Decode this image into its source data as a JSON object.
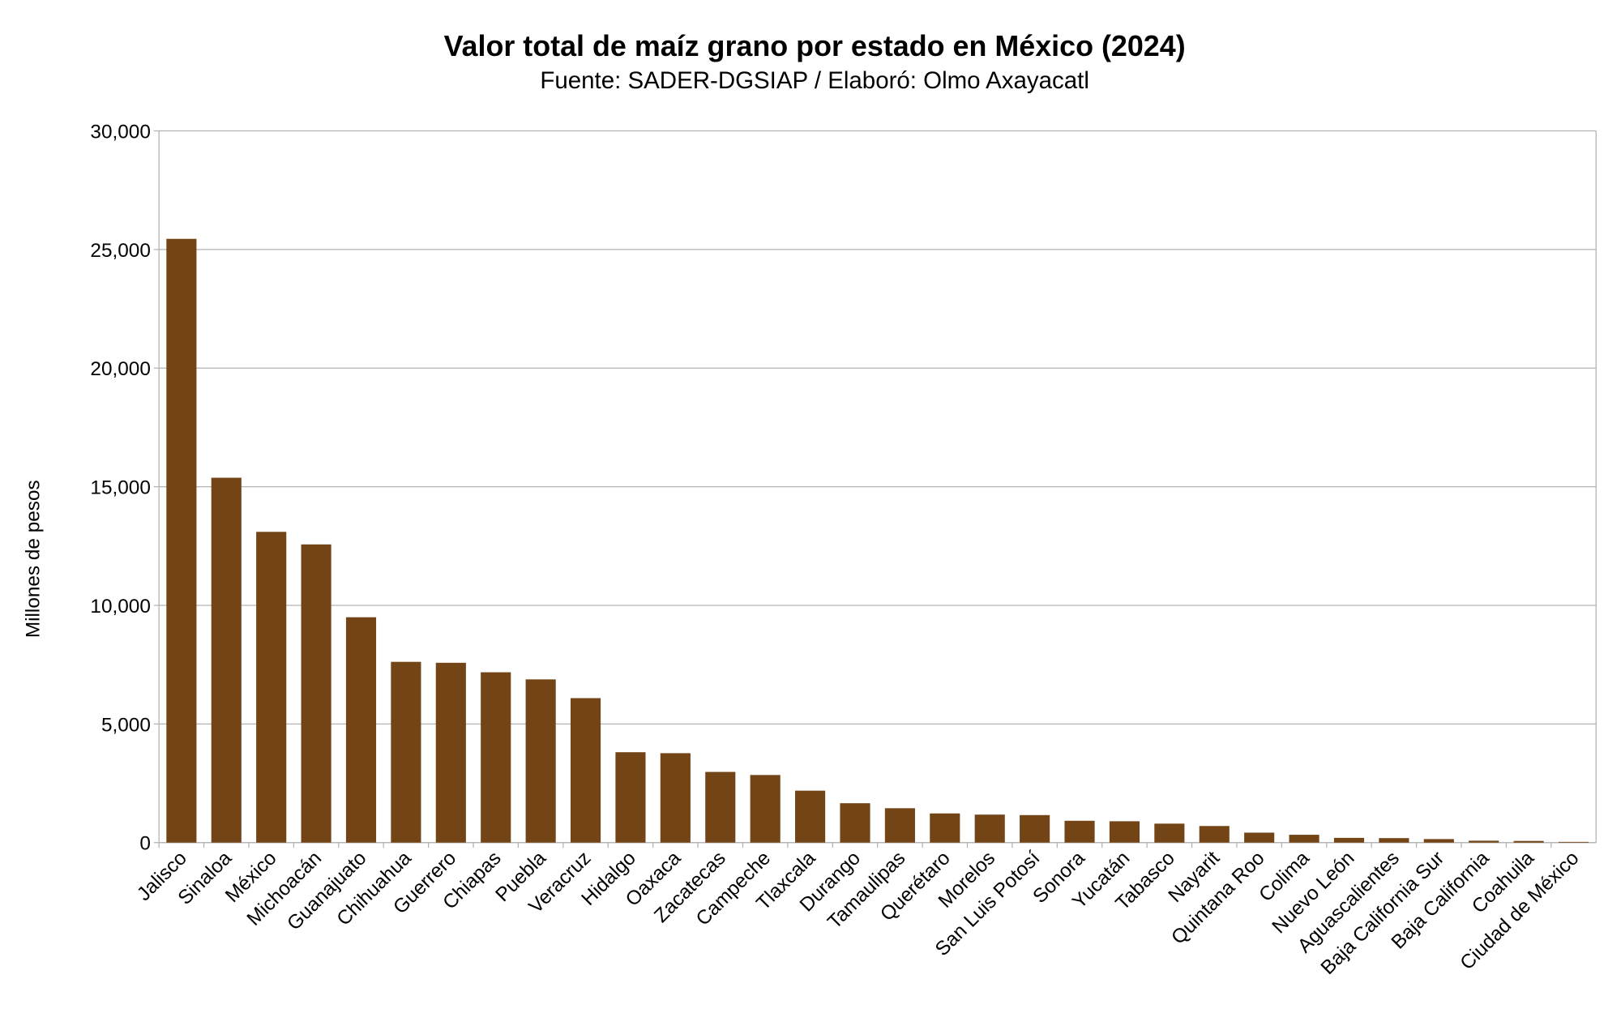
{
  "chart_data": {
    "type": "bar",
    "title": "Valor total de maíz grano por estado en México (2024)",
    "subtitle": "Fuente: SADER-DGSIAP / Elaboró: Olmo Axayacatl",
    "xlabel": "",
    "ylabel": "Millones de pesos",
    "ylim": [
      0,
      30000
    ],
    "yticks": [
      0,
      5000,
      10000,
      15000,
      20000,
      25000,
      30000
    ],
    "ytick_labels": [
      "0",
      "5,000",
      "10,000",
      "15,000",
      "20,000",
      "25,000",
      "30,000"
    ],
    "grid": true,
    "legend": "none",
    "bar_color": "#734516",
    "categories": [
      "Jalisco",
      "Sinaloa",
      "México",
      "Michoacán",
      "Guanajuato",
      "Chihuahua",
      "Guerrero",
      "Chiapas",
      "Puebla",
      "Veracruz",
      "Hidalgo",
      "Oaxaca",
      "Zacatecas",
      "Campeche",
      "Tlaxcala",
      "Durango",
      "Tamaulipas",
      "Querétaro",
      "Morelos",
      "San Luis Potosí",
      "Sonora",
      "Yucatán",
      "Tabasco",
      "Nayarit",
      "Quintana Roo",
      "Colima",
      "Nuevo León",
      "Aguascalientes",
      "Baja California Sur",
      "Baja California",
      "Coahuila",
      "Ciudad de México"
    ],
    "values": [
      25450,
      15380,
      13100,
      12570,
      9500,
      7620,
      7580,
      7180,
      6880,
      6090,
      3810,
      3770,
      2980,
      2850,
      2190,
      1660,
      1450,
      1230,
      1180,
      1160,
      920,
      900,
      800,
      700,
      420,
      330,
      200,
      190,
      150,
      80,
      70,
      30
    ]
  }
}
